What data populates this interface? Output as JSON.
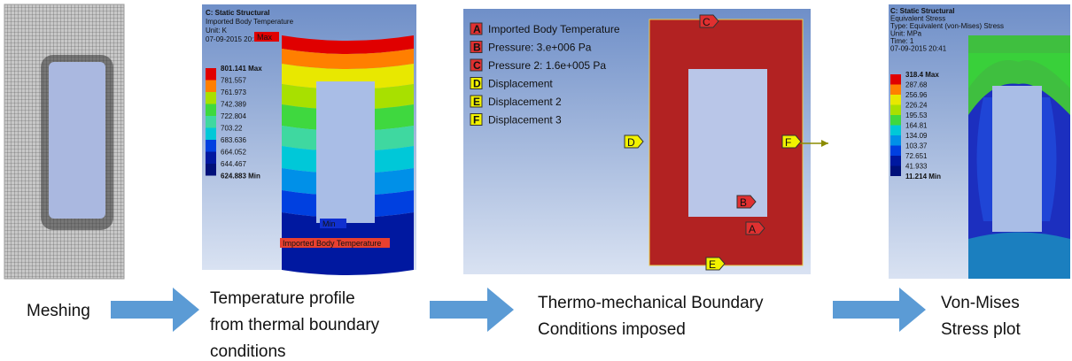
{
  "panels": [
    {
      "caption": [
        "Meshing"
      ]
    },
    {
      "caption": [
        "Temperature profile",
        "from thermal boundary",
        "conditions"
      ],
      "header": [
        "C: Static Structural",
        "Imported Body Temperature",
        "Unit: K",
        "07-09-2015 20:39"
      ],
      "legend": [
        "801.141 Max",
        "781.557",
        "761.973",
        "742.389",
        "722.804",
        "703.22",
        "683.636",
        "664.052",
        "644.467",
        "624.883 Min"
      ],
      "markers": [
        "Max",
        "Min"
      ],
      "tag": "Imported Body Temperature"
    },
    {
      "caption": [
        "Thermo-mechanical Boundary",
        "Conditions imposed"
      ],
      "labels": [
        {
          "letter": "A",
          "text": "Imported Body Temperature"
        },
        {
          "letter": "B",
          "text": "Pressure: 3.e+006 Pa"
        },
        {
          "letter": "C",
          "text": "Pressure 2: 1.6e+005 Pa"
        },
        {
          "letter": "D",
          "text": "Displacement"
        },
        {
          "letter": "E",
          "text": "Displacement 2"
        },
        {
          "letter": "F",
          "text": "Displacement 3"
        }
      ]
    },
    {
      "caption": [
        "Von-Mises",
        "Stress plot"
      ],
      "header": [
        "C: Static Structural",
        "Equivalent Stress",
        "Type: Equivalent (von-Mises) Stress",
        "Unit: MPa",
        "Time: 1",
        "07-09-2015 20:41"
      ],
      "legend": [
        "318.4 Max",
        "287.68",
        "256.96",
        "226.24",
        "195.53",
        "164.81",
        "134.09",
        "103.37",
        "72.651",
        "41.933",
        "11.214 Min"
      ]
    }
  ]
}
